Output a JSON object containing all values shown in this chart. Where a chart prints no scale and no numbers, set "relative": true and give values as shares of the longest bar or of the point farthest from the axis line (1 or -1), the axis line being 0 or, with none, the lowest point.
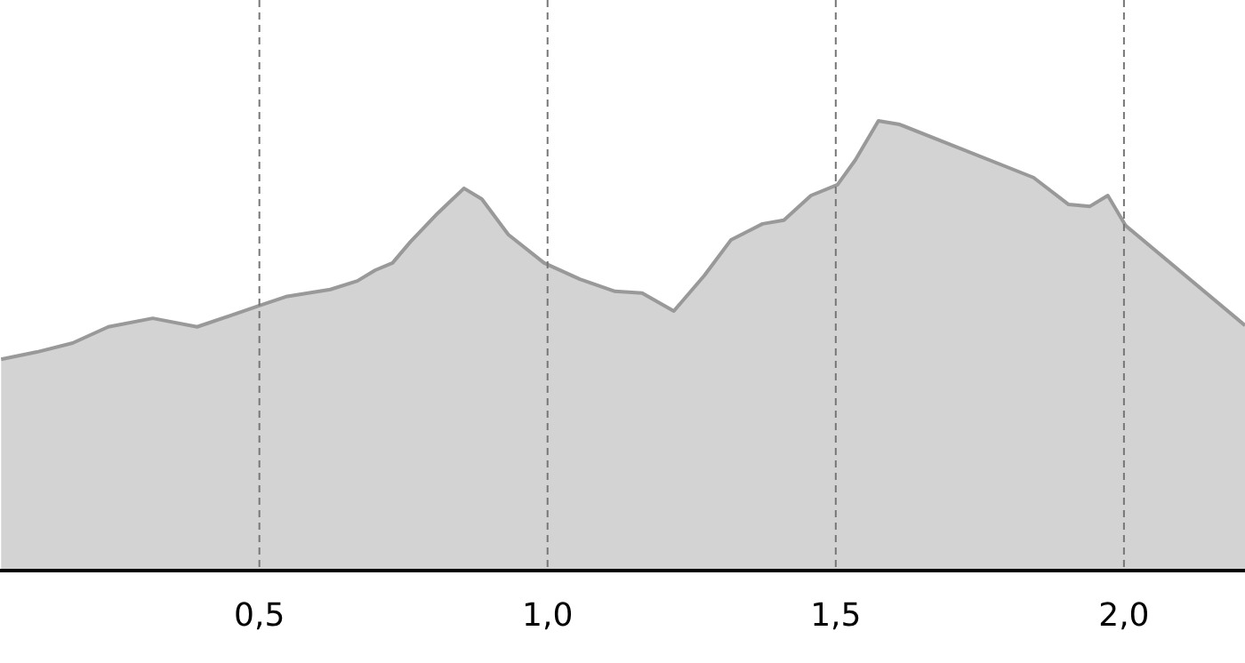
{
  "chart_data": {
    "type": "area",
    "relative": true,
    "grid": "x",
    "xlim": [
      0.05,
      2.21
    ],
    "xticks": [
      {
        "value": 0.5,
        "label": "0,5"
      },
      {
        "value": 1.0,
        "label": "1,0"
      },
      {
        "value": 1.5,
        "label": "1,5"
      },
      {
        "value": 2.0,
        "label": "2,0"
      }
    ],
    "series": [
      {
        "color": "#999999",
        "x": [
          0.052,
          0.114,
          0.176,
          0.238,
          0.315,
          0.392,
          0.5,
          0.546,
          0.623,
          0.67,
          0.701,
          0.731,
          0.762,
          0.809,
          0.855,
          0.886,
          0.932,
          0.994,
          1.056,
          1.117,
          1.164,
          1.219,
          1.272,
          1.318,
          1.373,
          1.41,
          1.457,
          1.503,
          1.534,
          1.574,
          1.611,
          1.843,
          1.904,
          1.941,
          1.972,
          2.003,
          2.21
        ],
        "values": [
          0.47,
          0.486,
          0.506,
          0.542,
          0.561,
          0.542,
          0.589,
          0.609,
          0.625,
          0.644,
          0.668,
          0.684,
          0.731,
          0.794,
          0.85,
          0.826,
          0.747,
          0.684,
          0.648,
          0.621,
          0.617,
          0.577,
          0.656,
          0.735,
          0.771,
          0.779,
          0.834,
          0.858,
          0.913,
          1.0,
          0.992,
          0.874,
          0.814,
          0.81,
          0.834,
          0.767,
          0.545
        ]
      }
    ]
  }
}
